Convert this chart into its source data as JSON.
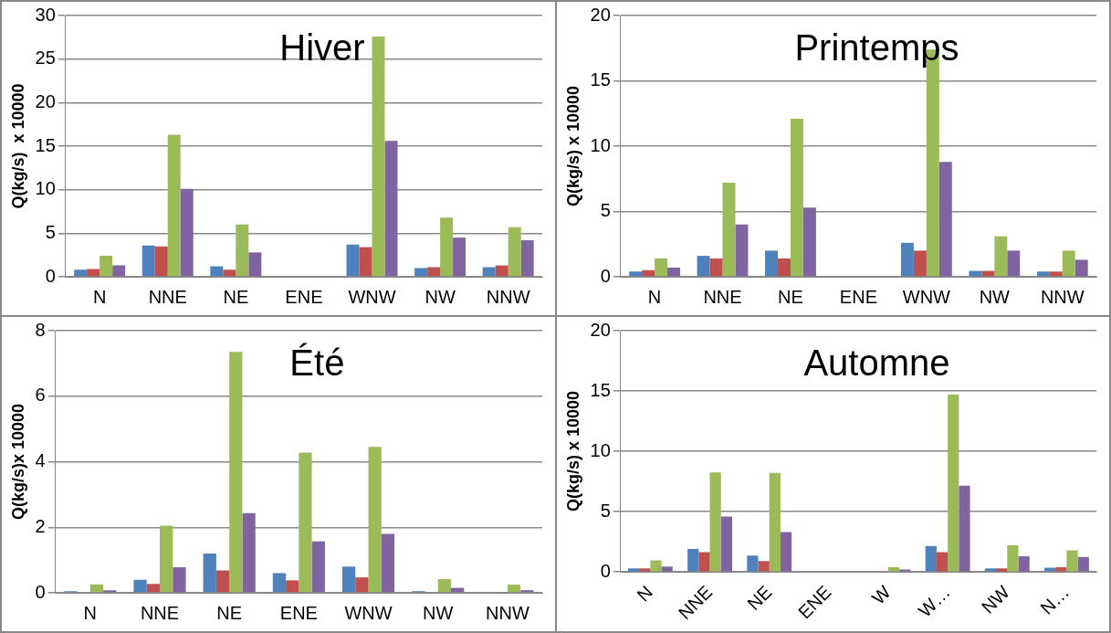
{
  "chart_data": [
    {
      "type": "bar",
      "title": "Hiver",
      "ylabel": "Q(kg/s)  x 10000",
      "categories": [
        "N",
        "NNE",
        "NE",
        "ENE",
        "WNW",
        "NW",
        "NNW"
      ],
      "ylim": [
        0,
        30
      ],
      "yticks": [
        0,
        5,
        10,
        15,
        20,
        25,
        30
      ],
      "grid": "y",
      "legend": false,
      "series": [
        {
          "color": "#4f81bd",
          "values": [
            0.8,
            3.6,
            1.2,
            0,
            3.7,
            1.0,
            1.1
          ]
        },
        {
          "color": "#c0504d",
          "values": [
            0.9,
            3.5,
            0.8,
            0,
            3.4,
            1.1,
            1.3
          ]
        },
        {
          "color": "#9bbb59",
          "values": [
            2.4,
            16.3,
            6.0,
            0,
            27.6,
            6.8,
            5.7
          ]
        },
        {
          "color": "#8064a2",
          "values": [
            1.3,
            10.1,
            2.8,
            0,
            15.6,
            4.5,
            4.2
          ]
        }
      ]
    },
    {
      "type": "bar",
      "title": "Printemps",
      "ylabel": "Q(kg/s) x 10000",
      "categories": [
        "N",
        "NNE",
        "NE",
        "ENE",
        "WNW",
        "NW",
        "NNW"
      ],
      "ylim": [
        0,
        20
      ],
      "yticks": [
        0,
        5,
        10,
        15,
        20
      ],
      "grid": "y",
      "legend": false,
      "series": [
        {
          "color": "#4f81bd",
          "values": [
            0.4,
            1.6,
            2.0,
            0,
            2.6,
            0.45,
            0.4
          ]
        },
        {
          "color": "#c0504d",
          "values": [
            0.5,
            1.4,
            1.4,
            0,
            2.0,
            0.45,
            0.4
          ]
        },
        {
          "color": "#9bbb59",
          "values": [
            1.4,
            7.2,
            12.1,
            0,
            17.4,
            3.1,
            2.0
          ]
        },
        {
          "color": "#8064a2",
          "values": [
            0.7,
            4.0,
            5.3,
            0,
            8.8,
            2.0,
            1.3
          ]
        }
      ]
    },
    {
      "type": "bar",
      "title": "Été",
      "ylabel": "Q(kg/s)x 10000",
      "categories": [
        "N",
        "NNE",
        "NE",
        "ENE",
        "WNW",
        "NW",
        "NNW"
      ],
      "ylim": [
        0,
        8
      ],
      "yticks": [
        0,
        2,
        4,
        6,
        8
      ],
      "grid": "y",
      "legend": false,
      "series": [
        {
          "color": "#4f81bd",
          "values": [
            0.05,
            0.4,
            1.2,
            0.6,
            0.8,
            0.05,
            null
          ]
        },
        {
          "color": "#c0504d",
          "values": [
            null,
            0.27,
            0.68,
            0.38,
            0.47,
            0.02,
            0.02
          ]
        },
        {
          "color": "#9bbb59",
          "values": [
            0.26,
            2.05,
            7.35,
            4.28,
            4.45,
            0.42,
            0.25
          ]
        },
        {
          "color": "#8064a2",
          "values": [
            0.08,
            0.78,
            2.43,
            1.57,
            1.8,
            0.15,
            0.08
          ]
        }
      ]
    },
    {
      "type": "bar",
      "title": "Automne",
      "ylabel": "Q(kg/s) x 10000",
      "categories": [
        "N",
        "NNE",
        "NE",
        "ENE",
        "W",
        "W…",
        "NW",
        "N…"
      ],
      "ylim": [
        0,
        20
      ],
      "yticks": [
        0,
        5,
        10,
        15,
        20
      ],
      "grid": "y",
      "legend": false,
      "series": [
        {
          "color": "#4f81bd",
          "values": [
            0.3,
            1.9,
            1.35,
            0,
            0.05,
            2.15,
            0.3,
            0.35
          ]
        },
        {
          "color": "#c0504d",
          "values": [
            0.3,
            1.65,
            0.9,
            0,
            null,
            1.65,
            0.3,
            0.4
          ]
        },
        {
          "color": "#9bbb59",
          "values": [
            0.95,
            8.25,
            8.2,
            0,
            0.4,
            14.7,
            2.2,
            1.8
          ]
        },
        {
          "color": "#8064a2",
          "values": [
            0.45,
            4.6,
            3.3,
            0,
            0.2,
            7.15,
            1.3,
            1.25
          ]
        }
      ]
    }
  ]
}
